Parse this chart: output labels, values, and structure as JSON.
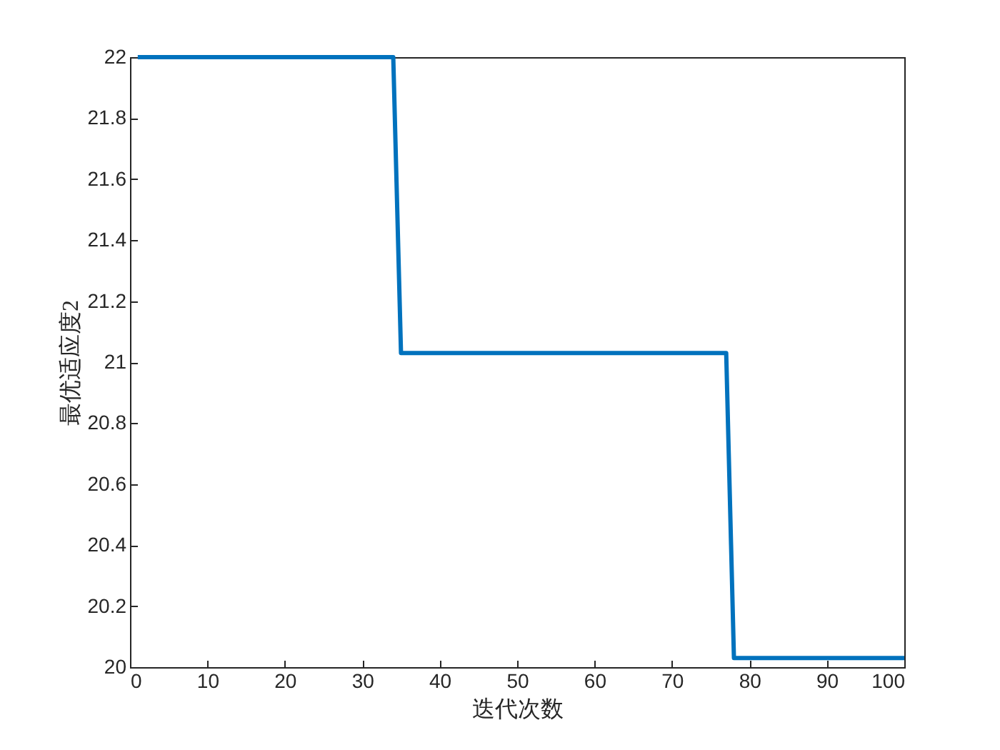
{
  "chart_data": {
    "type": "line",
    "xlabel": "迭代次数",
    "ylabel": "最优适应度2",
    "x": [
      1,
      34,
      35,
      77,
      78,
      100
    ],
    "series": [
      {
        "color": "#0072bd",
        "values": [
          22,
          22,
          21.03,
          21.03,
          20.03,
          20.03
        ]
      }
    ],
    "xlim": [
      0,
      100
    ],
    "xticks": [
      0,
      10,
      20,
      30,
      40,
      50,
      60,
      70,
      80,
      90,
      100
    ],
    "ylim": [
      20,
      22
    ],
    "yticks": [
      20,
      20.2,
      20.4,
      20.6,
      20.8,
      21,
      21.2,
      21.4,
      21.6,
      21.8,
      22
    ],
    "grid": false,
    "legend": false,
    "marker": "none",
    "line_style": "solid"
  }
}
